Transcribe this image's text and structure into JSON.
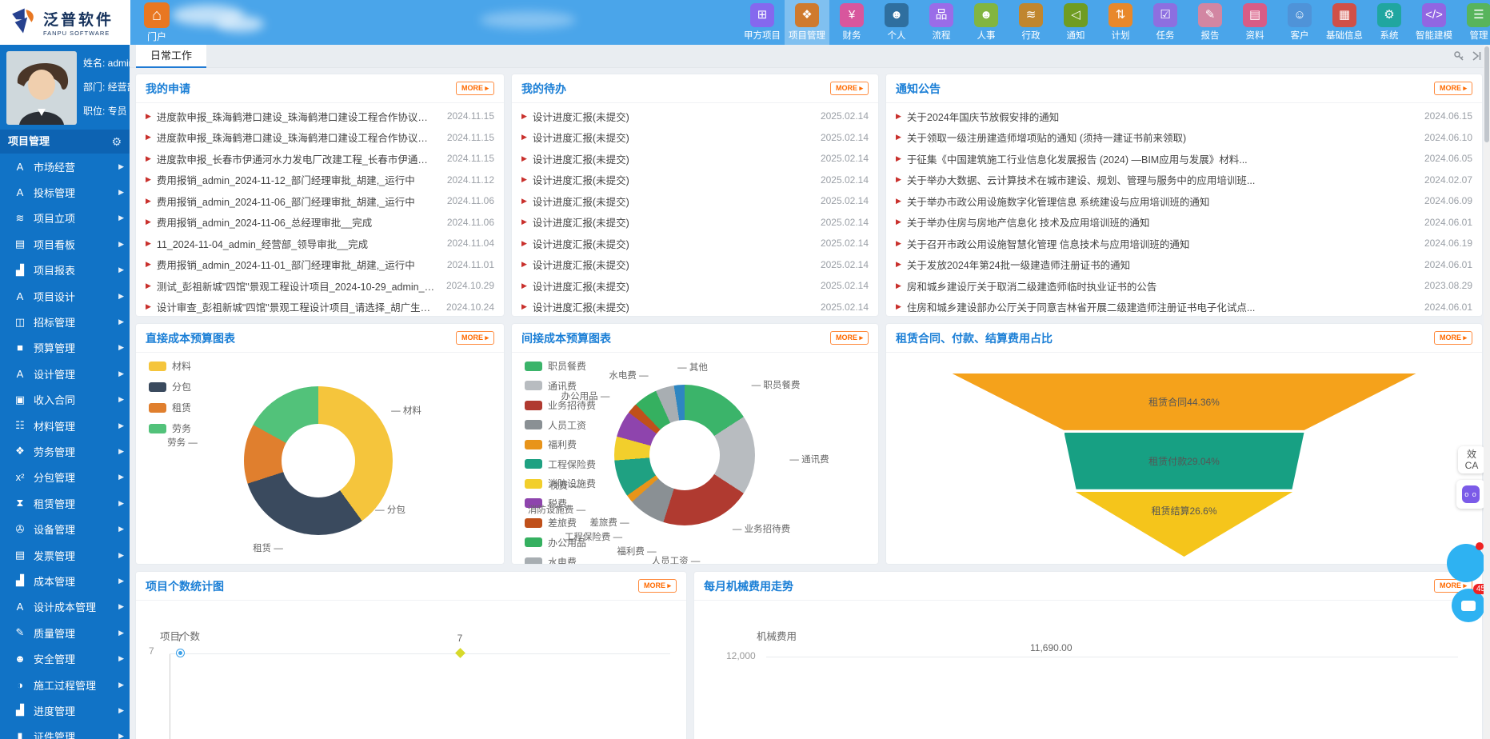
{
  "app": {
    "logo_title": "泛普软件",
    "logo_subtitle": "FANPU SOFTWARE",
    "portal_label": "门户"
  },
  "topnav": {
    "items": [
      {
        "label": "甲方项目",
        "icon": "grid-icon",
        "color": "#8568ee",
        "active": false
      },
      {
        "label": "项目管理",
        "icon": "modules-icon",
        "color": "#cf7a2e",
        "active": true
      },
      {
        "label": "财务",
        "icon": "finance-yen-icon",
        "color": "#d8569d",
        "active": false
      },
      {
        "label": "个人",
        "icon": "person-icon",
        "color": "#2f6f9f",
        "active": false
      },
      {
        "label": "流程",
        "icon": "flowchart-icon",
        "color": "#9a6ce8",
        "active": false
      },
      {
        "label": "人事",
        "icon": "hr-person-icon",
        "color": "#82b541",
        "active": false
      },
      {
        "label": "行政",
        "icon": "layers-icon",
        "color": "#c0862f",
        "active": false
      },
      {
        "label": "通知",
        "icon": "speaker-icon",
        "color": "#6f9c22",
        "active": false
      },
      {
        "label": "计划",
        "icon": "sliders-icon",
        "color": "#e8882b",
        "active": false
      },
      {
        "label": "任务",
        "icon": "task-icon",
        "color": "#8d6fe0",
        "active": false
      },
      {
        "label": "报告",
        "icon": "report-icon",
        "color": "#d286a2",
        "active": false
      },
      {
        "label": "资料",
        "icon": "document-icon",
        "color": "#d85c86",
        "active": false
      },
      {
        "label": "客户",
        "icon": "customers-icon",
        "color": "#4f93d8",
        "active": false
      },
      {
        "label": "基础信息",
        "icon": "baseinfo-icon",
        "color": "#d05048",
        "active": false
      },
      {
        "label": "系统",
        "icon": "gear-icon",
        "color": "#20a6a0",
        "active": false
      },
      {
        "label": "智能建模",
        "icon": "code-icon",
        "color": "#9166e2",
        "active": false
      },
      {
        "label": "管理",
        "icon": "manage-list-icon",
        "color": "#58b45c",
        "active": false
      }
    ]
  },
  "sidebar": {
    "user": {
      "name": "姓名: admin",
      "department": "部门: 经营部",
      "position": "职位: 专员"
    },
    "section_title": "项目管理",
    "items": [
      {
        "label": "市场经营",
        "icon": "badge-a-icon"
      },
      {
        "label": "投标管理",
        "icon": "badge-a-icon"
      },
      {
        "label": "项目立项",
        "icon": "layers-icon"
      },
      {
        "label": "项目看板",
        "icon": "board-icon"
      },
      {
        "label": "项目报表",
        "icon": "bar-chart-icon"
      },
      {
        "label": "项目设计",
        "icon": "badge-a-icon"
      },
      {
        "label": "招标管理",
        "icon": "inbox-icon"
      },
      {
        "label": "预算管理",
        "icon": "folder-icon"
      },
      {
        "label": "设计管理",
        "icon": "badge-a-icon"
      },
      {
        "label": "收入合同",
        "icon": "banknote-icon"
      },
      {
        "label": "材料管理",
        "icon": "cart-icon"
      },
      {
        "label": "劳务管理",
        "icon": "vest-icon"
      },
      {
        "label": "分包管理",
        "icon": "formula-icon"
      },
      {
        "label": "租赁管理",
        "icon": "hourglass-icon"
      },
      {
        "label": "设备管理",
        "icon": "plug-icon"
      },
      {
        "label": "发票管理",
        "icon": "invoice-icon"
      },
      {
        "label": "成本管理",
        "icon": "bar-chart-icon"
      },
      {
        "label": "设计成本管理",
        "icon": "badge-a-icon"
      },
      {
        "label": "质量管理",
        "icon": "edit-icon"
      },
      {
        "label": "安全管理",
        "icon": "helmet-icon"
      },
      {
        "label": "施工过程管理",
        "icon": "process-icon"
      },
      {
        "label": "进度管理",
        "icon": "bar-chart-icon"
      },
      {
        "label": "证件管理",
        "icon": "id-card-icon"
      }
    ]
  },
  "tabs": {
    "active_label": "日常工作"
  },
  "panels": {
    "more_label": "MORE",
    "my_requests": {
      "title": "我的申请",
      "items": [
        {
          "text": "进度款申报_珠海鹤港口建设_珠海鹤港口建设工程合作协议书_admin_...",
          "date": "2024.11.15"
        },
        {
          "text": "进度款申报_珠海鹤港口建设_珠海鹤港口建设工程合作协议书_admin_...",
          "date": "2024.11.15"
        },
        {
          "text": "进度款申报_长春市伊通河水力发电厂改建工程_长春市伊通河水力发电...",
          "date": "2024.11.15"
        },
        {
          "text": "费用报销_admin_2024-11-12_部门经理审批_胡建,_运行中",
          "date": "2024.11.12"
        },
        {
          "text": "费用报销_admin_2024-11-06_部门经理审批_胡建,_运行中",
          "date": "2024.11.06"
        },
        {
          "text": "费用报销_admin_2024-11-06_总经理审批__完成",
          "date": "2024.11.06"
        },
        {
          "text": "11_2024-11-04_admin_经营部_领导审批__完成",
          "date": "2024.11.04"
        },
        {
          "text": "费用报销_admin_2024-11-01_部门经理审批_胡建,_运行中",
          "date": "2024.11.01"
        },
        {
          "text": "测试_彭祖新城\"四馆\"景观工程设计项目_2024-10-29_admin_结束__完成",
          "date": "2024.10.29"
        },
        {
          "text": "设计审查_彭祖新城\"四馆\"景观工程设计项目_请选择_胡广生_2024-10-2...",
          "date": "2024.10.24"
        }
      ]
    },
    "my_todos": {
      "title": "我的待办",
      "items": [
        {
          "text": "设计进度汇报(未提交)",
          "date": "2025.02.14"
        },
        {
          "text": "设计进度汇报(未提交)",
          "date": "2025.02.14"
        },
        {
          "text": "设计进度汇报(未提交)",
          "date": "2025.02.14"
        },
        {
          "text": "设计进度汇报(未提交)",
          "date": "2025.02.14"
        },
        {
          "text": "设计进度汇报(未提交)",
          "date": "2025.02.14"
        },
        {
          "text": "设计进度汇报(未提交)",
          "date": "2025.02.14"
        },
        {
          "text": "设计进度汇报(未提交)",
          "date": "2025.02.14"
        },
        {
          "text": "设计进度汇报(未提交)",
          "date": "2025.02.14"
        },
        {
          "text": "设计进度汇报(未提交)",
          "date": "2025.02.14"
        },
        {
          "text": "设计进度汇报(未提交)",
          "date": "2025.02.14"
        }
      ]
    },
    "notices": {
      "title": "通知公告",
      "items": [
        {
          "text": "关于2024年国庆节放假安排的通知",
          "date": "2024.06.15"
        },
        {
          "text": "关于领取一级注册建造师增项贴的通知 (须持一建证书前来领取)",
          "date": "2024.06.10"
        },
        {
          "text": "于征集《中国建筑施工行业信息化发展报告 (2024) —BIM应用与发展》材料...",
          "date": "2024.06.05"
        },
        {
          "text": "关于举办大数据、云计算技术在城市建设、规划、管理与服务中的应用培训班...",
          "date": "2024.02.07"
        },
        {
          "text": "关于举办市政公用设施数字化管理信息 系统建设与应用培训班的通知",
          "date": "2024.06.09"
        },
        {
          "text": "关于举办住房与房地产信息化 技术及应用培训班的通知",
          "date": "2024.06.01"
        },
        {
          "text": "关于召开市政公用设施智慧化管理 信息技术与应用培训班的通知",
          "date": "2024.06.19"
        },
        {
          "text": "关于发放2024年第24批一级建造师注册证书的通知",
          "date": "2024.06.01"
        },
        {
          "text": "房和城乡建设厅关于取消二级建造师临时执业证书的公告",
          "date": "2023.08.29"
        },
        {
          "text": "住房和城乡建设部办公厅关于同意吉林省开展二级建造师注册证书电子化试点...",
          "date": "2024.06.01"
        }
      ]
    }
  },
  "chart_data": [
    {
      "type": "pie",
      "subtype": "donut",
      "title": "直接成本预算图表",
      "legend_position": "top-left",
      "values_are_percent_estimates": true,
      "series": [
        {
          "name": "材料",
          "value": 40,
          "color": "#f5c53c"
        },
        {
          "name": "分包",
          "value": 30,
          "color": "#3a4a5e"
        },
        {
          "name": "租赁",
          "value": 13,
          "color": "#e07f2e"
        },
        {
          "name": "劳务",
          "value": 17,
          "color": "#52c27a"
        }
      ]
    },
    {
      "type": "pie",
      "subtype": "donut",
      "title": "间接成本预算图表",
      "legend_position": "left",
      "values_are_percent_estimates": true,
      "series": [
        {
          "name": "职员餐费",
          "value": 13,
          "color": "#3bb46a"
        },
        {
          "name": "通讯费",
          "value": 15,
          "color": "#b8bcc0"
        },
        {
          "name": "业务招待费",
          "value": 17,
          "color": "#b03a30"
        },
        {
          "name": "人员工资",
          "value": 7,
          "color": "#8a9094"
        },
        {
          "name": "福利费",
          "value": 1.5,
          "color": "#e8941a"
        },
        {
          "name": "工程保险费",
          "value": 7,
          "color": "#1fa182"
        },
        {
          "name": "消防设施费",
          "value": 4.5,
          "color": "#f2cf2c"
        },
        {
          "name": "税费",
          "value": 5,
          "color": "#8e44ad"
        },
        {
          "name": "差旅费",
          "value": 2,
          "color": "#c0501a"
        },
        {
          "name": "办公用品",
          "value": 4.5,
          "color": "#35b060"
        },
        {
          "name": "水电费",
          "value": 3.5,
          "color": "#a8aeb2"
        },
        {
          "name": "其他",
          "value": 2,
          "color": "#2e86c1"
        }
      ]
    },
    {
      "type": "pie",
      "subtype": "funnel",
      "title": "租赁合同、付款、结算费用占比",
      "series": [
        {
          "name": "租赁合同",
          "value": 44.36,
          "label": "租赁合同44.36%",
          "color": "#f5a21b"
        },
        {
          "name": "租赁付款",
          "value": 29.04,
          "label": "租赁付款29.04%",
          "color": "#17a083"
        },
        {
          "name": "租赁结算",
          "value": 26.6,
          "label": "租赁结算26.6%",
          "color": "#f5c51b"
        }
      ]
    },
    {
      "type": "line",
      "title": "项目个数统计图",
      "ylabel": "项目个数",
      "visible_y_ticks": [
        "7"
      ],
      "points": [
        {
          "label": "7"
        },
        {
          "label": "7"
        }
      ],
      "note": "chart partially cut off at bottom of viewport"
    },
    {
      "type": "line",
      "title": "每月机械费用走势",
      "ylabel": "机械费用",
      "visible_y_ticks": [
        "12,000"
      ],
      "visible_point_labels": [
        "11,690.00"
      ],
      "note": "chart partially cut off at bottom of viewport"
    }
  ],
  "floating": {
    "ca_line1": "效",
    "ca_line2": "CA",
    "chat_badge": "45"
  }
}
